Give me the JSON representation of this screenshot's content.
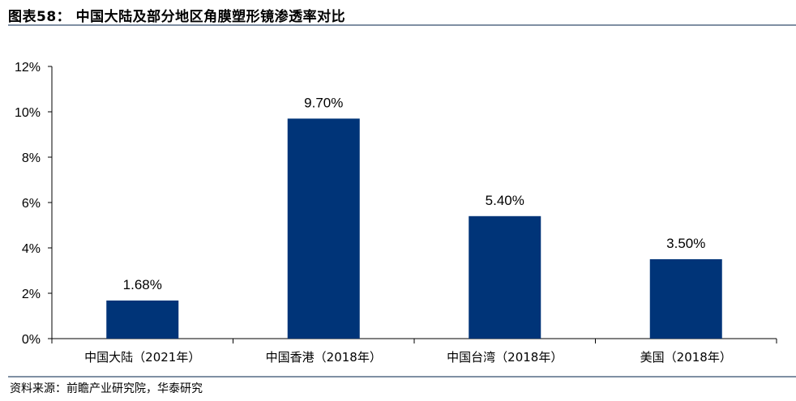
{
  "header": {
    "title": "图表58：  中国大陆及部分地区角膜塑形镜渗透率对比"
  },
  "footer": {
    "source": "资料来源：前瞻产业研究院，华泰研究"
  },
  "colors": {
    "bar": "#003478",
    "rule": "#7f8fa3"
  },
  "chart_data": {
    "type": "bar",
    "title": "",
    "xlabel": "",
    "ylabel": "",
    "categories": [
      "中国大陆（2021年）",
      "中国香港（2018年）",
      "中国台湾（2018年）",
      "美国（2018年）"
    ],
    "values": [
      1.68,
      9.7,
      5.4,
      3.5
    ],
    "value_labels": [
      "1.68%",
      "9.70%",
      "5.40%",
      "3.50%"
    ],
    "ylim": [
      0,
      12
    ],
    "yticks": [
      0,
      2,
      4,
      6,
      8,
      10,
      12
    ],
    "ytick_labels": [
      "0%",
      "2%",
      "4%",
      "6%",
      "8%",
      "10%",
      "12%"
    ],
    "grid": false,
    "legend": "none"
  }
}
